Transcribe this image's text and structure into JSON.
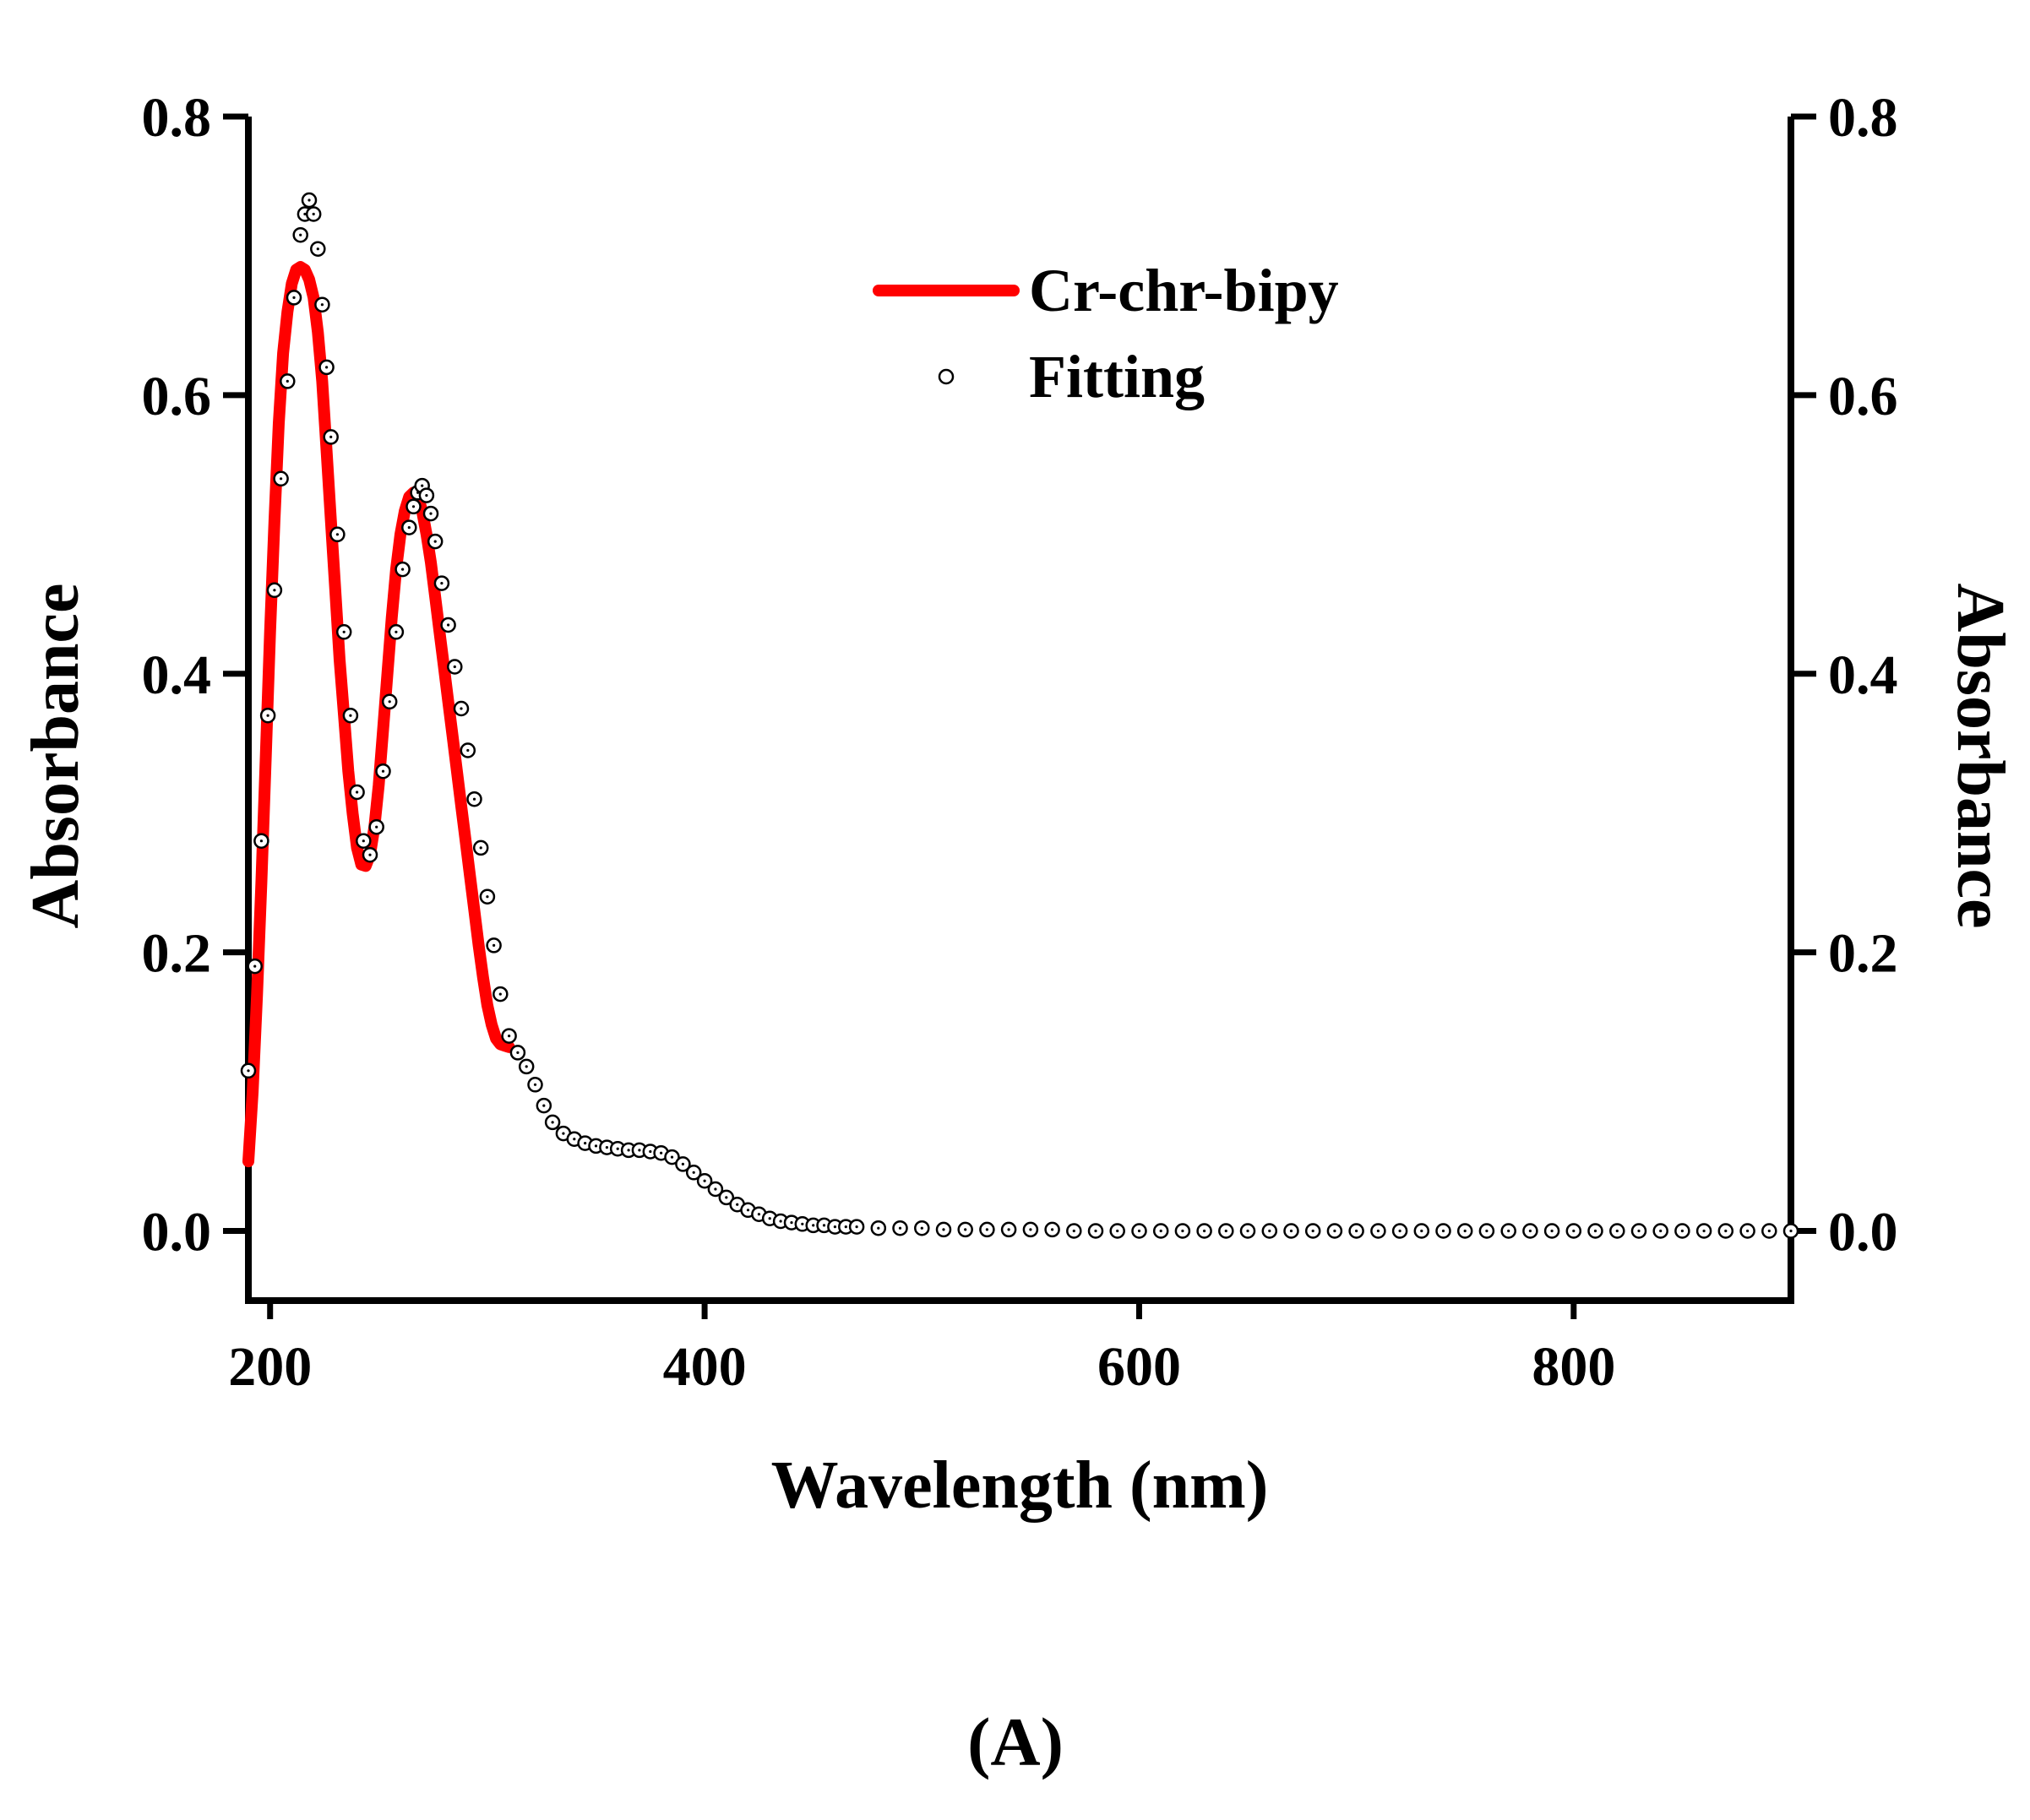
{
  "chart_data": {
    "type": "line",
    "title": "",
    "xlabel": "Wavelength (nm)",
    "ylabel": "Absorbance",
    "ylabel_right": "Absorbance",
    "xlim": [
      190,
      900
    ],
    "ylim": [
      -0.05,
      0.8
    ],
    "xticks": [
      200,
      400,
      600,
      800
    ],
    "xtick_labels": [
      "200",
      "400",
      "600",
      "800"
    ],
    "yticks": [
      0.0,
      0.2,
      0.4,
      0.6,
      0.8
    ],
    "ytick_labels": [
      "0.0",
      "0.2",
      "0.4",
      "0.6",
      "0.8"
    ],
    "grid": false,
    "legend_position": "top-center",
    "series": [
      {
        "name": "Cr-chr-bipy",
        "style": "line",
        "color": "#ff0000",
        "x": [
          190,
          192,
          194,
          196,
          198,
          200,
          202,
          204,
          206,
          208,
          210,
          212,
          214,
          216,
          218,
          220,
          222,
          224,
          226,
          228,
          230,
          232,
          234,
          236,
          238,
          240,
          242,
          244,
          246,
          248,
          250,
          252,
          254,
          256,
          258,
          260,
          262,
          264,
          266,
          268,
          270,
          272,
          274,
          276,
          278,
          280,
          282,
          284,
          286,
          288,
          290,
          292,
          294,
          296,
          298,
          300,
          302,
          304,
          306,
          308,
          310
        ],
        "y": [
          0.05,
          0.1,
          0.17,
          0.25,
          0.34,
          0.43,
          0.51,
          0.58,
          0.63,
          0.66,
          0.68,
          0.69,
          0.692,
          0.69,
          0.683,
          0.67,
          0.645,
          0.61,
          0.56,
          0.51,
          0.46,
          0.41,
          0.37,
          0.33,
          0.3,
          0.275,
          0.263,
          0.262,
          0.27,
          0.29,
          0.32,
          0.36,
          0.4,
          0.44,
          0.475,
          0.5,
          0.517,
          0.527,
          0.53,
          0.527,
          0.517,
          0.5,
          0.48,
          0.455,
          0.43,
          0.405,
          0.38,
          0.355,
          0.33,
          0.305,
          0.28,
          0.255,
          0.23,
          0.205,
          0.182,
          0.162,
          0.148,
          0.138,
          0.134,
          0.133,
          0.132
        ]
      },
      {
        "name": "Fitting",
        "style": "markers",
        "color": "#000000",
        "x": [
          190,
          193,
          196,
          199,
          202,
          205,
          208,
          211,
          214,
          216,
          218,
          220,
          222,
          224,
          226,
          228,
          231,
          234,
          237,
          240,
          243,
          246,
          249,
          252,
          255,
          258,
          261,
          264,
          266,
          268,
          270,
          272,
          274,
          276,
          279,
          282,
          285,
          288,
          291,
          294,
          297,
          300,
          303,
          306,
          310,
          314,
          318,
          322,
          326,
          330,
          335,
          340,
          345,
          350,
          355,
          360,
          365,
          370,
          375,
          380,
          385,
          390,
          395,
          400,
          405,
          410,
          415,
          420,
          425,
          430,
          435,
          440,
          445,
          450,
          455,
          460,
          465,
          470,
          480,
          490,
          500,
          510,
          520,
          530,
          540,
          550,
          560,
          570,
          580,
          590,
          600,
          610,
          620,
          630,
          640,
          650,
          660,
          670,
          680,
          690,
          700,
          710,
          720,
          730,
          740,
          750,
          760,
          770,
          780,
          790,
          800,
          810,
          820,
          830,
          840,
          850,
          860,
          870,
          880,
          890,
          900
        ],
        "y": [
          0.115,
          0.19,
          0.28,
          0.37,
          0.46,
          0.54,
          0.61,
          0.67,
          0.715,
          0.73,
          0.74,
          0.73,
          0.705,
          0.665,
          0.62,
          0.57,
          0.5,
          0.43,
          0.37,
          0.315,
          0.28,
          0.27,
          0.29,
          0.33,
          0.38,
          0.43,
          0.475,
          0.505,
          0.52,
          0.53,
          0.535,
          0.528,
          0.515,
          0.495,
          0.465,
          0.435,
          0.405,
          0.375,
          0.345,
          0.31,
          0.275,
          0.24,
          0.205,
          0.17,
          0.14,
          0.128,
          0.118,
          0.105,
          0.09,
          0.078,
          0.07,
          0.066,
          0.063,
          0.061,
          0.06,
          0.059,
          0.058,
          0.058,
          0.057,
          0.056,
          0.053,
          0.048,
          0.042,
          0.036,
          0.03,
          0.024,
          0.019,
          0.015,
          0.012,
          0.009,
          0.007,
          0.006,
          0.005,
          0.004,
          0.004,
          0.003,
          0.003,
          0.003,
          0.002,
          0.002,
          0.002,
          0.001,
          0.001,
          0.001,
          0.001,
          0.001,
          0.001,
          0.0,
          0.0,
          0.0,
          0.0,
          0.0,
          0.0,
          0.0,
          0.0,
          0.0,
          0.0,
          0.0,
          0.0,
          0.0,
          0.0,
          0.0,
          0.0,
          0.0,
          0.0,
          0.0,
          0.0,
          0.0,
          0.0,
          0.0,
          0.0,
          0.0,
          0.0,
          0.0,
          0.0,
          0.0,
          0.0,
          0.0,
          0.0,
          0.0,
          0.0
        ]
      }
    ],
    "panel_label": "(A)"
  }
}
